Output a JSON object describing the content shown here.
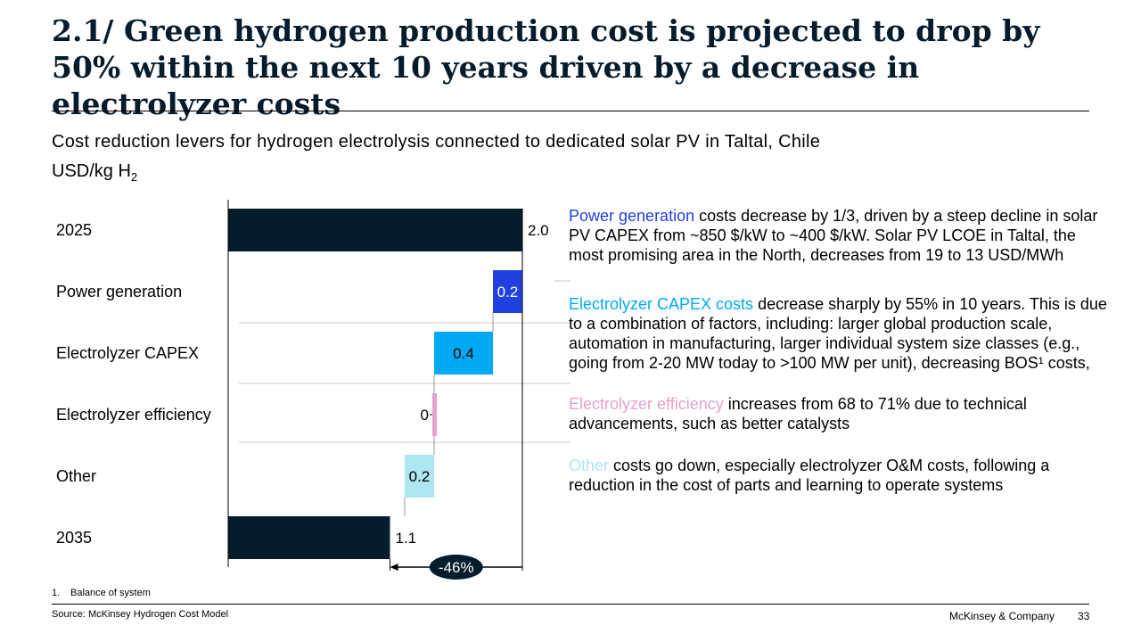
{
  "title": "2.1/ Green hydrogen production cost is projected to drop by 50% within the next 10 years driven by a decrease in electrolyzer costs",
  "subtitle": "Cost reduction levers for hydrogen electrolysis connected to dedicated solar PV in Taltal, Chile",
  "unit": {
    "main": "USD/kg H",
    "sub": "2"
  },
  "chart_data": {
    "type": "bar",
    "subtype": "waterfall",
    "categories": [
      "2025",
      "Power generation",
      "Electrolyzer CAPEX",
      "Electrolyzer efficiency",
      "Other",
      "2035"
    ],
    "values": [
      2.0,
      0.2,
      0.4,
      0,
      0.2,
      1.1
    ],
    "value_labels": [
      "2.0",
      "0.2",
      "0.4",
      "0",
      "0.2",
      "1.1"
    ],
    "kinds": [
      "total",
      "decrease",
      "decrease",
      "decrease",
      "decrease",
      "total"
    ],
    "colors": [
      "#051c2c",
      "#2140e0",
      "#00a9f4",
      "#e5a1cf",
      "#aee6f2",
      "#051c2c"
    ],
    "label_colors": [
      "#000000",
      "#ffffff",
      "#000000",
      "#000000",
      "#000000",
      "#000000"
    ],
    "change_label": "-46%",
    "xlim": [
      0,
      2.0
    ]
  },
  "notes": [
    {
      "highlight": "Power generation",
      "color": "#2140e0",
      "text": " costs decrease by 1/3, driven by a steep decline in solar PV CAPEX from ~850 $/kW to ~400 $/kW. Solar PV LCOE in Taltal, the most promising area in the North, decreases from 19 to 13 USD/MWh"
    },
    {
      "highlight": "Electrolyzer CAPEX costs",
      "color": "#00a9f4",
      "text": " decrease sharply by 55% in 10 years. This is due to a combination of factors, including: larger global production scale, automation in manufacturing, larger individual system size classes (e.g., going from 2-20 MW today to >100 MW per unit), decreasing BOS¹ costs,"
    },
    {
      "highlight": "Electrolyzer efficiency",
      "color": "#e5a1cf",
      "text": " increases from 68 to 71% due to technical advancements, such as better catalysts"
    },
    {
      "highlight": "Other",
      "color": "#aee6f2",
      "text": " costs go down, especially electrolyzer O&M costs, following a reduction in the cost of parts and learning to operate systems"
    }
  ],
  "footnote": {
    "num": "1.",
    "text": "Balance of system"
  },
  "source": "Source: McKinsey Hydrogen Cost Model",
  "brand": "McKinsey & Company",
  "page_number": "33"
}
